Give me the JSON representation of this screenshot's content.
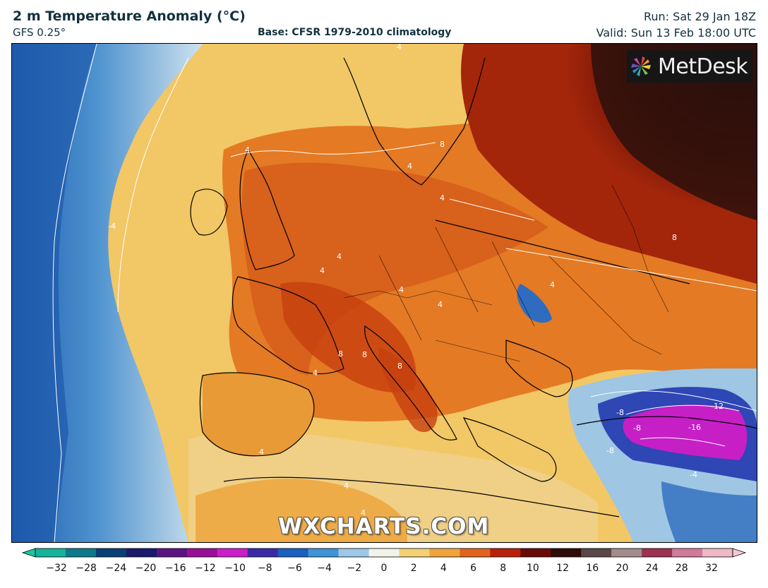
{
  "header": {
    "title": "2 m Temperature Anomaly (°C)",
    "model": "GFS 0.25°",
    "base": "Base: CFSR 1979-2010 climatology",
    "run": "Run: Sat 29 Jan 18Z",
    "valid": "Valid: Sun 13 Feb 18:00 UTC"
  },
  "logo": {
    "text": "MetDesk",
    "icon": "pinwheel-logo-icon"
  },
  "watermark": "WXCHARTS.COM",
  "map": {
    "contour_labels": [
      "4",
      "4",
      "4",
      "8",
      "4",
      "8",
      "4",
      "4",
      "4",
      "4",
      "4",
      "8",
      "4",
      "8",
      "8",
      "4",
      "4",
      "4",
      "-8",
      "-8",
      "-12",
      "-16",
      "-8",
      "-4",
      "-4"
    ]
  },
  "colorbar": {
    "tick_labels": [
      "−32",
      "−28",
      "−24",
      "−20",
      "−16",
      "−12",
      "−10",
      "−8",
      "−6",
      "−4",
      "−2",
      "0",
      "2",
      "4",
      "6",
      "8",
      "10",
      "12",
      "16",
      "20",
      "24",
      "28",
      "32"
    ],
    "colors": [
      "#14b39a",
      "#0d7a8c",
      "#0a3f74",
      "#1a1a6e",
      "#5a1583",
      "#9a0f97",
      "#cc1ec8",
      "#3b2aa8",
      "#1a5fc2",
      "#3f94d6",
      "#9cc7e6",
      "#f2f3ea",
      "#f4d074",
      "#f0a33a",
      "#e2641c",
      "#b8200c",
      "#6a0b07",
      "#2e0d09",
      "#5a4848",
      "#a28c8c",
      "#9c3152",
      "#d17a9a",
      "#f0b7c6"
    ]
  }
}
